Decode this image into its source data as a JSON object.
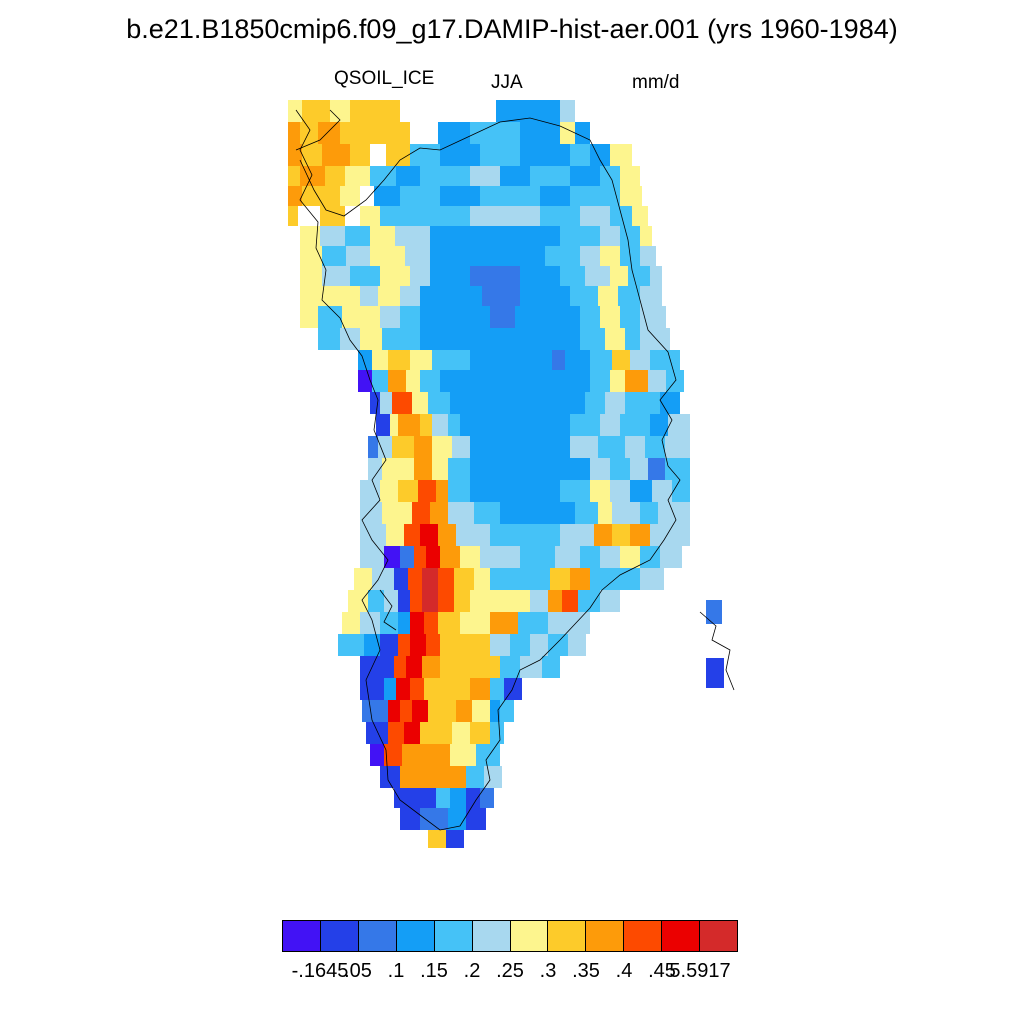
{
  "header": {
    "title": "b.e21.B1850cmip6.f09_g17.DAMIP-hist-aer.001 (yrs 1960-1984)",
    "variable": "QSOIL_ICE",
    "season": "JJA",
    "units": "mm/d"
  },
  "legend": {
    "colors": [
      "#4212f5",
      "#2440e8",
      "#3578e8",
      "#149ef6",
      "#45c2f7",
      "#a8d8ef",
      "#fdf58e",
      "#fdcb2a",
      "#fd9b0a",
      "#fd4a00",
      "#eb0000",
      "#d42a2a"
    ],
    "labels": [
      "-.1645",
      ".05",
      ".1",
      ".15",
      ".2",
      ".25",
      ".3",
      ".35",
      ".4",
      ".45",
      "5.5917"
    ]
  },
  "map_data": {
    "region": "Greenland",
    "field": "QSOIL_ICE",
    "dominant_interior_class": ".15-.2",
    "extreme_class_location": "southwest coast"
  }
}
